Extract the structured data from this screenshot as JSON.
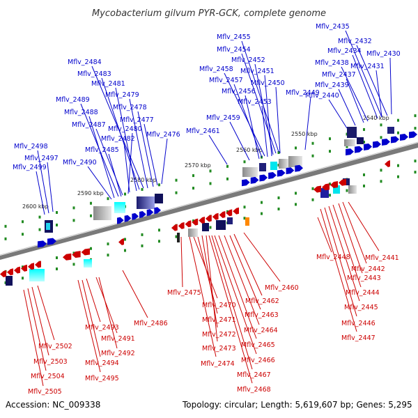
{
  "title": "Mycobacterium gilvum PYR-GCK, complete genome",
  "accession": "Accession: NC_009338",
  "summary": "Topology: circular; Length: 5,619,607 bp; Genes: 5,295",
  "ticks": [
    "2540 kbp",
    "2550 kbp",
    "2560 kbp",
    "2570 kbp",
    "2580 kbp",
    "2590 kbp",
    "2600 kbp"
  ],
  "colors": {
    "forward": "#0000cc",
    "reverse": "#cc0000",
    "backbone": "#808080",
    "tick": "#228b22",
    "title": "#333333"
  },
  "forward_genes": [
    "Mflv_2435",
    "Mflv_2432",
    "Mflv_2434",
    "Mflv_2430",
    "Mflv_2438",
    "Mflv_2431",
    "Mflv_2437",
    "Mflv_2439",
    "Mflv_2440",
    "Mflv_2455",
    "Mflv_2454",
    "Mflv_2452",
    "Mflv_2458",
    "Mflv_2451",
    "Mflv_2457",
    "Mflv_2450",
    "Mflv_2456",
    "Mflv_2449",
    "Mflv_2453",
    "Mflv_2459",
    "Mflv_2461",
    "Mflv_2484",
    "Mflv_2483",
    "Mflv_2481",
    "Mflv_2479",
    "Mflv_2489",
    "Mflv_2478",
    "Mflv_2488",
    "Mflv_2477",
    "Mflv_2487",
    "Mflv_2480",
    "Mflv_2476",
    "Mflv_2482",
    "Mflv_2485",
    "Mflv_2490",
    "Mflv_2498",
    "Mflv_2497",
    "Mflv_2499"
  ],
  "reverse_genes": [
    "Mflv_2441",
    "Mflv_2448",
    "Mflv_2442",
    "Mflv_2443",
    "Mflv_2444",
    "Mflv_2445",
    "Mflv_2446",
    "Mflv_2447",
    "Mflv_2460",
    "Mflv_2475",
    "Mflv_2462",
    "Mflv_2470",
    "Mflv_2463",
    "Mflv_2471",
    "Mflv_2464",
    "Mflv_2472",
    "Mflv_2465",
    "Mflv_2473",
    "Mflv_2466",
    "Mflv_2474",
    "Mflv_2467",
    "Mflv_2468",
    "Mflv_2486",
    "Mflv_2493",
    "Mflv_2491",
    "Mflv_2492",
    "Mflv_2494",
    "Mflv_2495",
    "Mflv_2502",
    "Mflv_2503",
    "Mflv_2504",
    "Mflv_2505"
  ]
}
